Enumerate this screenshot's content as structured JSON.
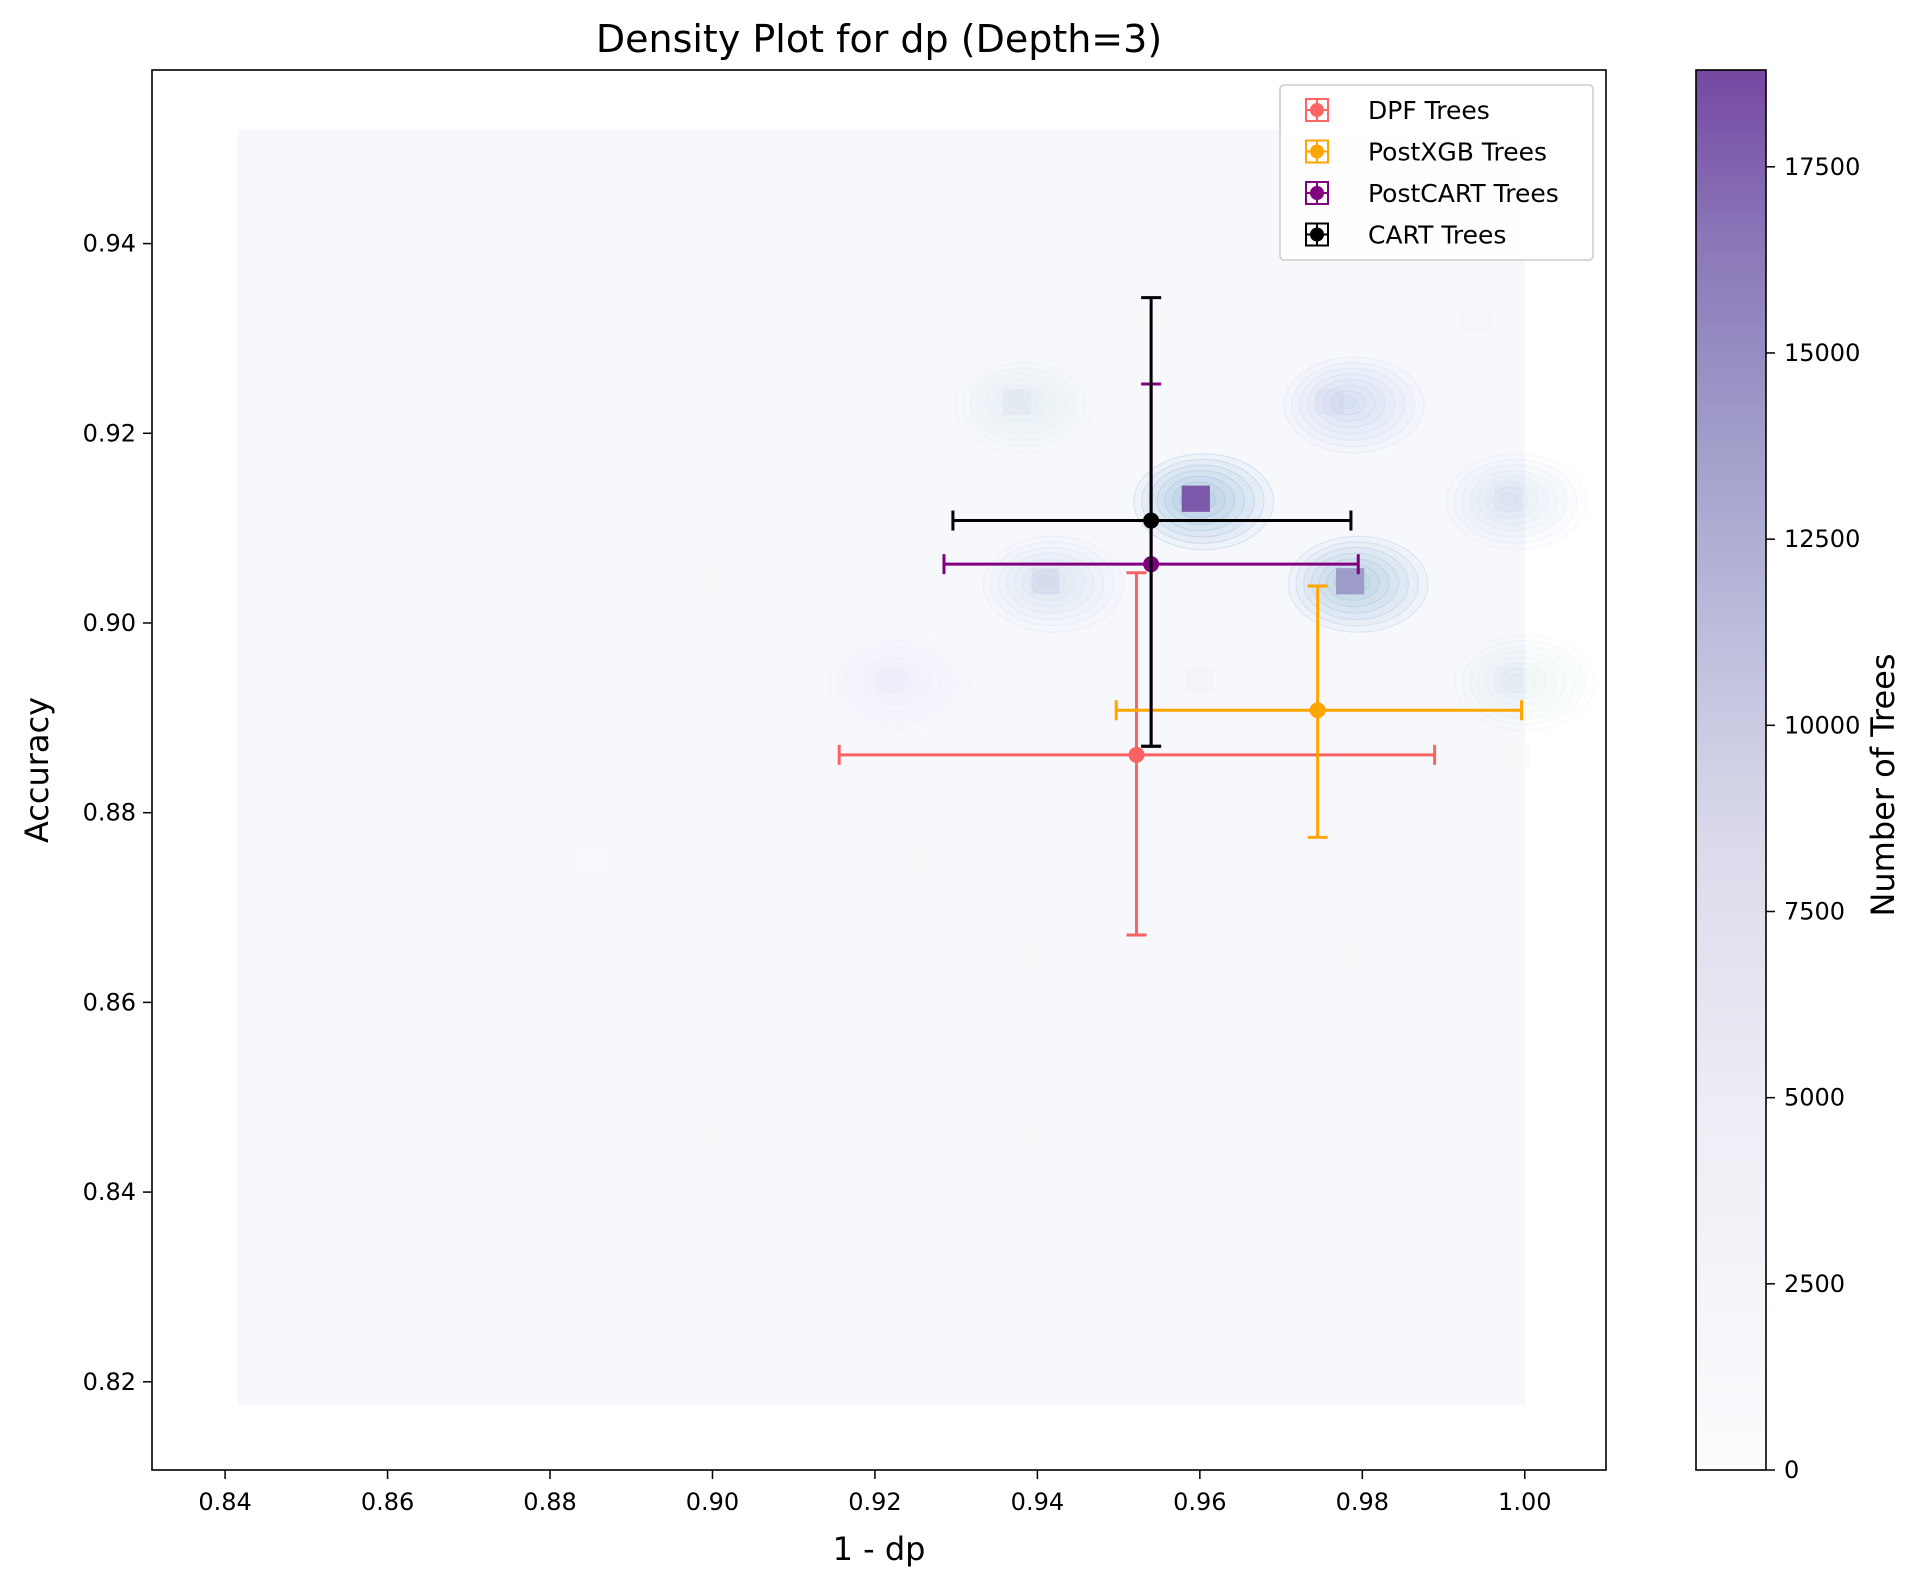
{
  "chart_data": {
    "type": "scatter",
    "title": "Density Plot for dp (Depth=3)",
    "xlabel": "1 - dp",
    "ylabel": "Accuracy",
    "xlim": [
      0.831,
      1.01
    ],
    "ylim": [
      0.8107,
      0.9583
    ],
    "x_ticks": [
      0.84,
      0.86,
      0.88,
      0.9,
      0.92,
      0.94,
      0.96,
      0.98,
      1.0
    ],
    "x_tick_labels": [
      "0.84",
      "0.86",
      "0.88",
      "0.90",
      "0.92",
      "0.94",
      "0.96",
      "0.98",
      "1.00"
    ],
    "y_ticks": [
      0.82,
      0.84,
      0.86,
      0.88,
      0.9,
      0.92,
      0.94
    ],
    "y_tick_labels": [
      "0.82",
      "0.84",
      "0.86",
      "0.88",
      "0.90",
      "0.92",
      "0.94"
    ],
    "grid": false,
    "legend_position": "top-right",
    "series": [
      {
        "name": "DPF Trees",
        "color": "#ff0000",
        "alpha": 0.6,
        "x": 0.9522,
        "y": 0.8861,
        "x_err": [
          0.9156,
          0.9889
        ],
        "y_err": [
          0.8671,
          0.9053
        ]
      },
      {
        "name": "PostXGB Trees",
        "color": "#ffa500",
        "alpha": 1.0,
        "x": 0.9745,
        "y": 0.8908,
        "x_err": [
          0.9497,
          0.9996
        ],
        "y_err": [
          0.8774,
          0.9039
        ]
      },
      {
        "name": "PostCART Trees",
        "color": "#800080",
        "alpha": 1.0,
        "x": 0.954,
        "y": 0.9062,
        "x_err": [
          0.9285,
          0.9795
        ],
        "y_err": [
          0.887,
          0.9252
        ]
      },
      {
        "name": "CART Trees",
        "color": "#000000",
        "alpha": 1.0,
        "x": 0.954,
        "y": 0.9108,
        "x_err": [
          0.9296,
          0.9786
        ],
        "y_err": [
          0.887,
          0.9343
        ]
      }
    ],
    "density_extent": {
      "x": [
        0.8415,
        1.0
      ],
      "y": [
        0.8175,
        0.952
      ]
    },
    "density_cells": [
      {
        "x": 0.9595,
        "y": 0.9131,
        "count": 18000
      },
      {
        "x": 0.9785,
        "y": 0.9044,
        "count": 14000
      },
      {
        "x": 0.941,
        "y": 0.9044,
        "count": 6000
      },
      {
        "x": 0.9375,
        "y": 0.9233,
        "count": 4500
      },
      {
        "x": 0.976,
        "y": 0.9233,
        "count": 4500
      },
      {
        "x": 0.998,
        "y": 0.9131,
        "count": 4000
      },
      {
        "x": 0.998,
        "y": 0.894,
        "count": 3500
      },
      {
        "x": 0.96,
        "y": 0.894,
        "count": 3500
      },
      {
        "x": 0.994,
        "y": 0.932,
        "count": 2500
      },
      {
        "x": 0.922,
        "y": 0.894,
        "count": 2500
      },
      {
        "x": 0.903,
        "y": 0.886,
        "count": 2000
      },
      {
        "x": 0.9185,
        "y": 0.9131,
        "count": 1800
      },
      {
        "x": 0.961,
        "y": 0.875,
        "count": 1500
      },
      {
        "x": 0.998,
        "y": 0.875,
        "count": 1300
      },
      {
        "x": 0.925,
        "y": 0.875,
        "count": 1000
      },
      {
        "x": 0.979,
        "y": 0.865,
        "count": 1000
      },
      {
        "x": 0.94,
        "y": 0.865,
        "count": 900
      },
      {
        "x": 0.9,
        "y": 0.846,
        "count": 1200
      },
      {
        "x": 0.94,
        "y": 0.846,
        "count": 1000
      },
      {
        "x": 0.885,
        "y": 0.875,
        "count": 800
      },
      {
        "x": 0.999,
        "y": 0.886,
        "count": 1200
      },
      {
        "x": 0.98,
        "y": 0.886,
        "count": 1500
      },
      {
        "x": 0.94,
        "y": 0.886,
        "count": 1300
      },
      {
        "x": 0.9,
        "y": 0.9044,
        "count": 900
      },
      {
        "x": 0.954,
        "y": 0.932,
        "count": 1200
      }
    ],
    "colorbar": {
      "label": "Number of Trees",
      "range": [
        0,
        18800
      ],
      "ticks": [
        0,
        2500,
        5000,
        7500,
        10000,
        12500,
        15000,
        17500
      ],
      "tick_labels": [
        "0",
        "2500",
        "5000",
        "7500",
        "10000",
        "12500",
        "15000",
        "17500"
      ],
      "colormap": "Purples"
    },
    "kde_contours": [
      {
        "x": 0.9595,
        "y": 0.9131,
        "strength": 1.0
      },
      {
        "x": 0.9785,
        "y": 0.9044,
        "strength": 0.85
      },
      {
        "x": 0.941,
        "y": 0.9044,
        "strength": 0.35
      },
      {
        "x": 0.978,
        "y": 0.9233,
        "strength": 0.45
      },
      {
        "x": 0.998,
        "y": 0.9131,
        "strength": 0.3
      },
      {
        "x": 0.999,
        "y": 0.894,
        "strength": 0.25
      },
      {
        "x": 0.9375,
        "y": 0.9233,
        "strength": 0.2
      },
      {
        "x": 0.922,
        "y": 0.894,
        "strength": 0.15
      }
    ]
  }
}
